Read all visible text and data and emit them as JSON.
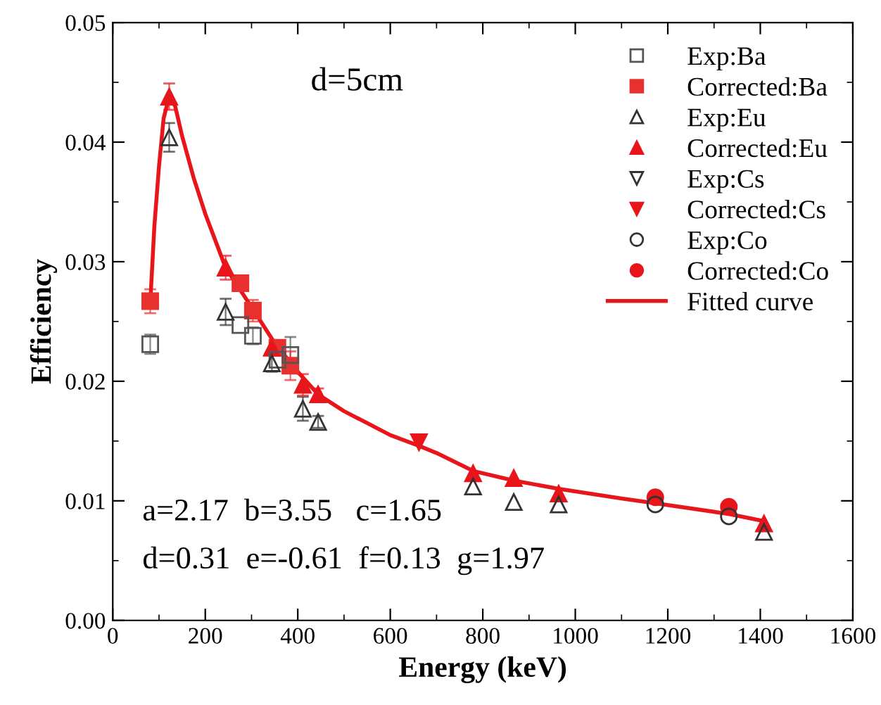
{
  "chart_data": {
    "type": "scatter",
    "xlabel": "Energy (keV)",
    "ylabel": "Efficiency",
    "xlim": [
      0,
      1600
    ],
    "xticks": [
      0,
      200,
      400,
      600,
      800,
      1000,
      1200,
      1400,
      1600
    ],
    "ylim": [
      0,
      0.05
    ],
    "yticks": [
      {
        "value": 0,
        "label": "0.00"
      },
      {
        "value": 0.01,
        "label": "0.01"
      },
      {
        "value": 0.02,
        "label": "0.02"
      },
      {
        "value": 0.03,
        "label": "0.03"
      },
      {
        "value": 0.04,
        "label": "0.04"
      },
      {
        "value": 0.05,
        "label": "0.05"
      }
    ],
    "grid": false,
    "legend": "top right",
    "annotations": [
      "d=5cm",
      "a=2.17  b=3.55   c=1.65",
      "d=0.31  e=-0.61  f=0.13  g=1.97"
    ],
    "series": [
      {
        "name": "Exp:Ba",
        "marker": "square",
        "color": "#555555",
        "x": [
          81,
          276,
          303,
          356,
          384
        ],
        "values": [
          0.0231,
          0.0247,
          0.0238,
          0.0218,
          0.0222
        ],
        "errors": [
          0.0008,
          null,
          0.0007,
          null,
          0.0015
        ]
      },
      {
        "name": "Corrected:Ba",
        "marker": "square",
        "color": "#e8302e",
        "x": [
          81,
          276,
          303,
          356,
          384
        ],
        "values": [
          0.0267,
          0.0282,
          0.0259,
          0.0228,
          0.0213
        ],
        "errors": [
          0.001,
          0.0006,
          0.0009,
          null,
          0.0012
        ]
      },
      {
        "name": "Exp:Eu",
        "marker": "triangle",
        "color": "#333333",
        "x": [
          122,
          244,
          344,
          411,
          444,
          779,
          867,
          964,
          1408
        ],
        "values": [
          0.0404,
          0.0258,
          0.0215,
          0.0177,
          0.0166,
          0.0112,
          0.0099,
          0.0097,
          0.0074
        ],
        "errors": [
          0.0012,
          0.0011,
          0.0007,
          0.001,
          0.0005,
          null,
          null,
          null,
          null
        ]
      },
      {
        "name": "Corrected:Eu",
        "marker": "triangle",
        "color": "#e8151b",
        "x": [
          122,
          244,
          344,
          411,
          444,
          779,
          867,
          964,
          1408
        ],
        "values": [
          0.0438,
          0.0295,
          0.0228,
          0.0197,
          0.0189,
          0.0123,
          0.0119,
          0.0106,
          0.0081
        ],
        "errors": [
          0.0011,
          0.001,
          null,
          0.0009,
          0.0005,
          null,
          null,
          null,
          null
        ]
      },
      {
        "name": "Exp:Cs",
        "marker": "triangle_down",
        "color": "#333333"
      },
      {
        "name": "Corrected:Cs",
        "marker": "triangle_down",
        "color": "#e8151b",
        "x": [
          662
        ],
        "values": [
          0.0149
        ]
      },
      {
        "name": "Exp:Co",
        "marker": "circle",
        "color": "#333333",
        "x": [
          1173,
          1332
        ],
        "values": [
          0.0097,
          0.0087
        ]
      },
      {
        "name": "Corrected:Co",
        "marker": "circle",
        "color": "#e8151b",
        "x": [
          1173,
          1332
        ],
        "values": [
          0.0103,
          0.0095
        ]
      },
      {
        "name": "Fitted curve",
        "type": "line",
        "marker": "none",
        "line_style": "solid",
        "color": "#e8151b",
        "x": [
          81,
          90,
          100,
          110,
          122,
          135,
          150,
          175,
          200,
          244,
          300,
          350,
          400,
          444,
          500,
          600,
          662,
          700,
          779,
          867,
          964,
          1100,
          1173,
          1332,
          1408
        ],
        "values": [
          0.0265,
          0.033,
          0.038,
          0.042,
          0.0438,
          0.043,
          0.0405,
          0.037,
          0.034,
          0.0295,
          0.0262,
          0.0232,
          0.0208,
          0.0189,
          0.0175,
          0.0155,
          0.0146,
          0.014,
          0.0125,
          0.0117,
          0.011,
          0.0102,
          0.0098,
          0.0089,
          0.0083
        ]
      }
    ]
  }
}
